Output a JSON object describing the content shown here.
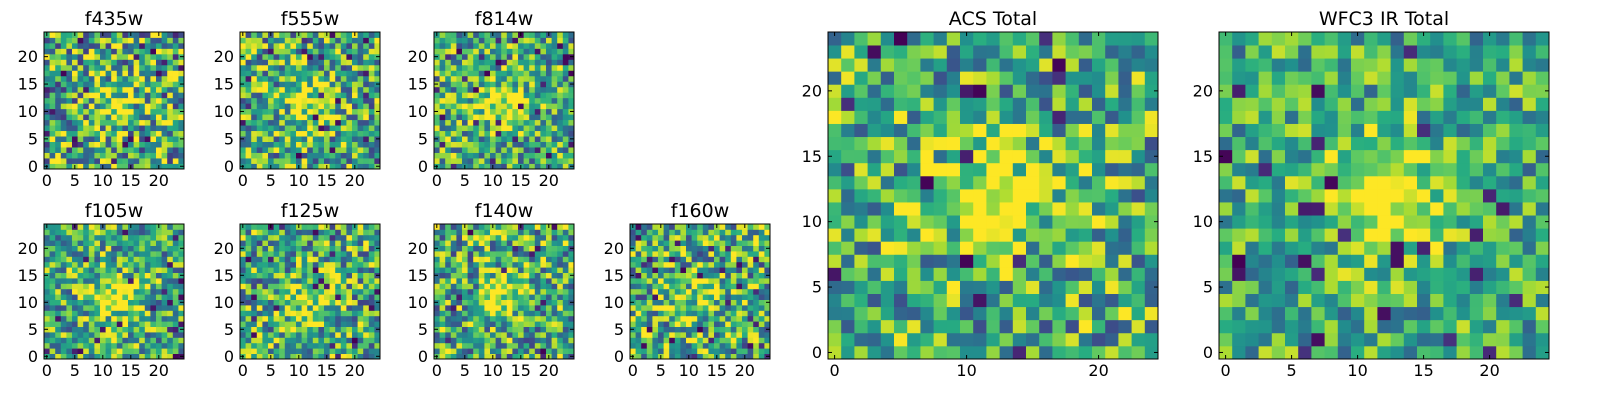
{
  "figure": {
    "colormap": "viridis",
    "colors": {
      "low": "#440154",
      "mid": "#21918c",
      "high": "#fde725",
      "frame": "#000000"
    }
  },
  "chart_data": [
    {
      "type": "heatmap",
      "title": "f435w",
      "xticks": [
        "0",
        "5",
        "10",
        "15",
        "20"
      ],
      "yticks": [
        "0",
        "5",
        "10",
        "15",
        "20"
      ],
      "xlim": [
        0,
        25
      ],
      "ylim": [
        0,
        25
      ],
      "grid": false,
      "source_peak": [
        12,
        11
      ],
      "source_strength": 0.25,
      "noise": 0.65,
      "seed": 3
    },
    {
      "type": "heatmap",
      "title": "f555w",
      "xticks": [
        "0",
        "5",
        "10",
        "15",
        "20"
      ],
      "yticks": [
        "0",
        "5",
        "10",
        "15",
        "20"
      ],
      "xlim": [
        0,
        25
      ],
      "ylim": [
        0,
        25
      ],
      "grid": false,
      "source_peak": [
        12,
        11
      ],
      "source_strength": 0.35,
      "noise": 0.6,
      "seed": 7
    },
    {
      "type": "heatmap",
      "title": "f814w",
      "xticks": [
        "0",
        "5",
        "10",
        "15",
        "20"
      ],
      "yticks": [
        "0",
        "5",
        "10",
        "15",
        "20"
      ],
      "xlim": [
        0,
        25
      ],
      "ylim": [
        0,
        25
      ],
      "grid": false,
      "source_peak": [
        12,
        11
      ],
      "source_strength": 0.45,
      "noise": 0.55,
      "seed": 11
    },
    {
      "type": "heatmap",
      "title": "f105w",
      "xticks": [
        "0",
        "5",
        "10",
        "15",
        "20"
      ],
      "yticks": [
        "0",
        "5",
        "10",
        "15",
        "20"
      ],
      "xlim": [
        0,
        25
      ],
      "ylim": [
        0,
        25
      ],
      "grid": false,
      "source_peak": [
        12,
        11
      ],
      "source_strength": 0.4,
      "noise": 0.55,
      "seed": 13
    },
    {
      "type": "heatmap",
      "title": "f125w",
      "xticks": [
        "0",
        "5",
        "10",
        "15",
        "20"
      ],
      "yticks": [
        "0",
        "5",
        "10",
        "15",
        "20"
      ],
      "xlim": [
        0,
        25
      ],
      "ylim": [
        0,
        25
      ],
      "grid": false,
      "source_peak": [
        12,
        11
      ],
      "source_strength": 0.3,
      "noise": 0.6,
      "seed": 17
    },
    {
      "type": "heatmap",
      "title": "f140w",
      "xticks": [
        "0",
        "5",
        "10",
        "15",
        "20"
      ],
      "yticks": [
        "0",
        "5",
        "10",
        "15",
        "20"
      ],
      "xlim": [
        0,
        25
      ],
      "ylim": [
        0,
        25
      ],
      "grid": false,
      "source_peak": [
        12,
        11
      ],
      "source_strength": 0.3,
      "noise": 0.6,
      "seed": 19
    },
    {
      "type": "heatmap",
      "title": "f160w",
      "xticks": [
        "0",
        "5",
        "10",
        "15",
        "20"
      ],
      "yticks": [
        "0",
        "5",
        "10",
        "15",
        "20"
      ],
      "xlim": [
        0,
        25
      ],
      "ylim": [
        0,
        25
      ],
      "grid": false,
      "source_peak": [
        12,
        11
      ],
      "source_strength": 0.25,
      "noise": 0.6,
      "seed": 23
    },
    {
      "type": "heatmap",
      "title": "ACS Total",
      "xticks": [
        "0",
        "10",
        "20"
      ],
      "yticks": [
        "0",
        "5",
        "10",
        "15",
        "20"
      ],
      "xlim": [
        0,
        25
      ],
      "ylim": [
        0,
        25
      ],
      "grid": false,
      "source_peak": [
        12,
        12
      ],
      "source_strength": 0.45,
      "noise": 0.55,
      "seed": 29
    },
    {
      "type": "heatmap",
      "title": "WFC3 IR Total",
      "xticks": [
        "0",
        "5",
        "10",
        "15",
        "20"
      ],
      "yticks": [
        "0",
        "5",
        "10",
        "15",
        "20"
      ],
      "xlim": [
        0,
        25
      ],
      "ylim": [
        0,
        25
      ],
      "grid": false,
      "source_peak": [
        12,
        12
      ],
      "source_strength": 0.55,
      "noise": 0.45,
      "seed": 31
    }
  ]
}
